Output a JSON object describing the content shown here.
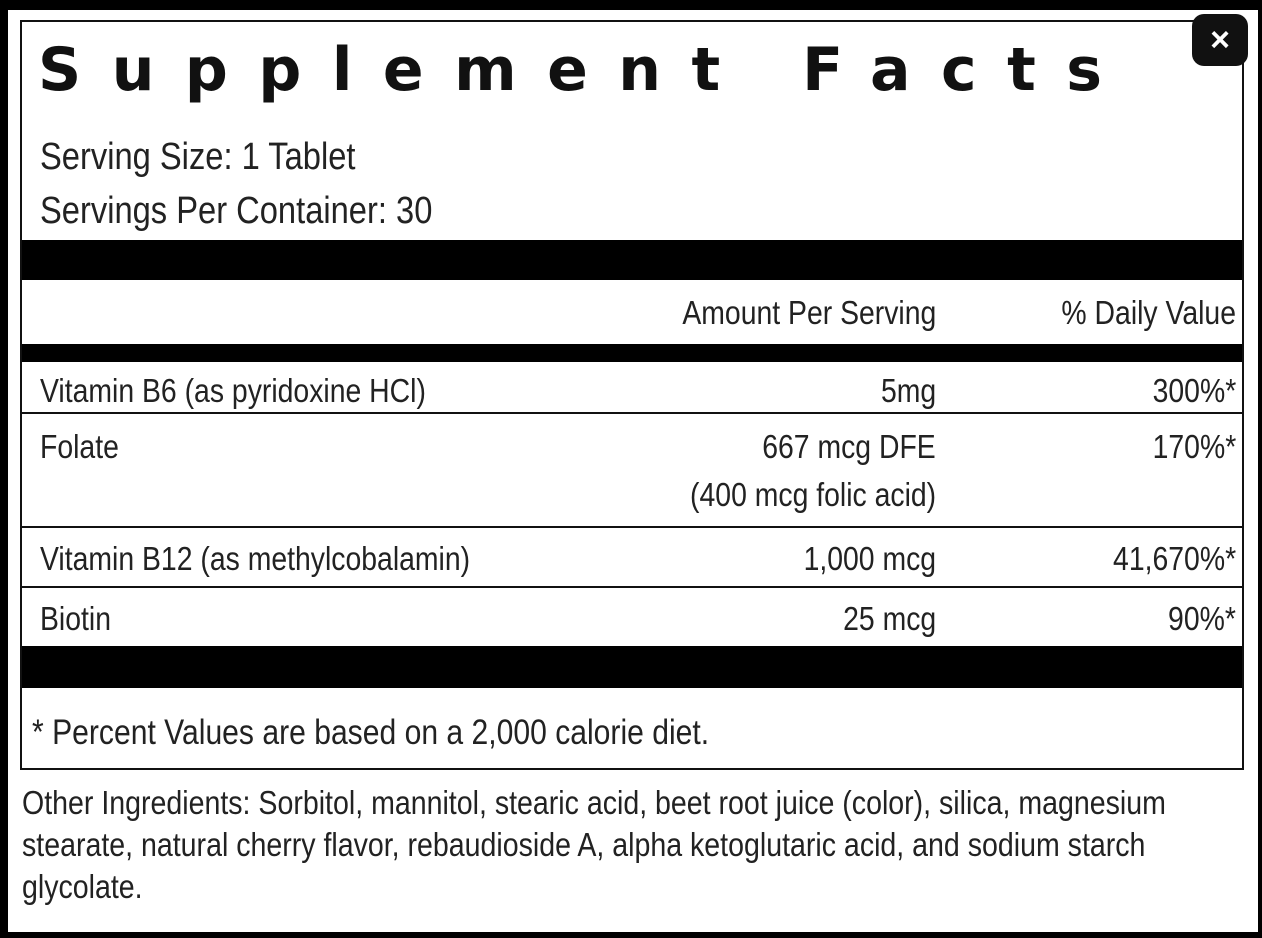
{
  "title": "Supplement Facts",
  "serving_size": "Serving Size: 1 Tablet",
  "servings_per_container": "Servings Per Container: 30",
  "header": {
    "amount": "Amount Per Serving",
    "daily_value": "% Daily Value"
  },
  "rows": [
    {
      "name": "Vitamin B6 (as pyridoxine HCl)",
      "amount": "5mg",
      "amount2": "",
      "dv": "300%*"
    },
    {
      "name": "Folate",
      "amount": "667 mcg DFE",
      "amount2": "(400 mcg folic acid)",
      "dv": "170%*"
    },
    {
      "name": "Vitamin B12 (as methylcobalamin)",
      "amount": "1,000 mcg",
      "amount2": "",
      "dv": "41,670%*"
    },
    {
      "name": "Biotin",
      "amount": "25 mcg",
      "amount2": "",
      "dv": "90%*"
    }
  ],
  "footnote": "* Percent Values are based on a 2,000 calorie diet.",
  "other_ingredients": "Other Ingredients: Sorbitol, mannitol, stearic acid, beet root juice (color), silica, magnesium stearate, natural cherry flavor, rebaudioside A, alpha ketoglutaric acid, and sodium starch glycolate.",
  "close_icon": "×"
}
